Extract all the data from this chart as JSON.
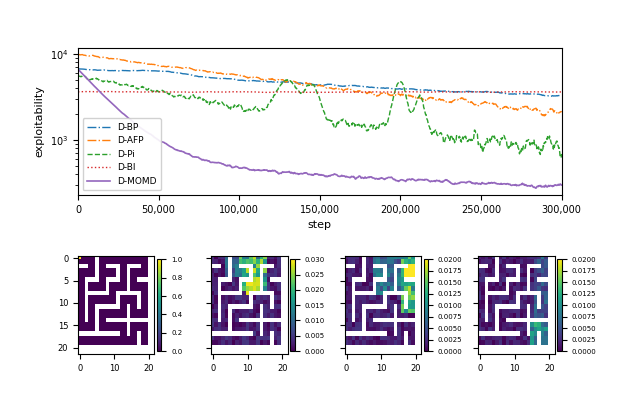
{
  "line_chart": {
    "xlabel": "step",
    "ylabel": "exploitability",
    "xlim": [
      0,
      300000
    ],
    "series": {
      "D-BP": {
        "color": "#1f77b4",
        "linestyle": "-.",
        "linewidth": 1.0
      },
      "D-AFP": {
        "color": "#ff7f0e",
        "linestyle": "-.",
        "linewidth": 1.0
      },
      "D-Pi": {
        "color": "#2ca02c",
        "linestyle": "--",
        "linewidth": 1.0
      },
      "D-BI": {
        "color": "#d62728",
        "linestyle": ":",
        "linewidth": 1.0
      },
      "D-MOMD": {
        "color": "#9467bd",
        "linestyle": "-",
        "linewidth": 1.2
      }
    }
  },
  "maze_colormap": "viridis",
  "heatmap1_vmin": 0.0,
  "heatmap1_vmax": 1.0,
  "heatmap2_vmin": 0.0,
  "heatmap2_vmax": 0.03,
  "heatmap3_vmin": 0.0,
  "heatmap3_vmax": 0.02,
  "heatmap4_vmin": 0.0,
  "heatmap4_vmax": 0.02
}
